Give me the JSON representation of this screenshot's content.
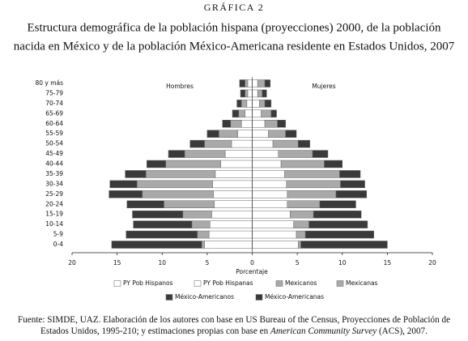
{
  "chart_data": {
    "type": "population-pyramid",
    "kicker": "GRÁFICA 2",
    "title": [
      "Estructura demográfica de la población hispana (proyecciones) 2000, de la población",
      "nacida en México y de la población México-Americana residente en Estados Unidos, 2007"
    ],
    "categories": [
      "80 y más",
      "75-79",
      "70-74",
      "65-69",
      "60-64",
      "55-59",
      "50-54",
      "45-49",
      "40-44",
      "35-39",
      "30-34",
      "25-29",
      "20-24",
      "15-19",
      "10-14",
      "5-9",
      "0-4"
    ],
    "panels": [
      {
        "label": "Hombres",
        "series": [
          {
            "name": "PY Pob Hispanos",
            "color": "#ffffff",
            "values": [
              0.5,
              0.5,
              0.6,
              0.8,
              1.2,
              1.6,
              2.3,
              3.0,
              3.5,
              4.1,
              4.4,
              4.3,
              4.2,
              4.5,
              4.7,
              4.8,
              5.3
            ]
          },
          {
            "name": "Mexicanos",
            "color": "#a9a9a9",
            "values": [
              0.3,
              0.3,
              0.6,
              0.7,
              1.2,
              2.1,
              3.0,
              4.5,
              6.1,
              7.7,
              8.4,
              7.9,
              5.6,
              3.2,
              2.0,
              1.3,
              0.3
            ]
          },
          {
            "name": "México-Americanos",
            "color": "#3a3a3a",
            "values": [
              0.6,
              0.5,
              0.5,
              0.7,
              0.9,
              1.3,
              1.6,
              1.8,
              2.1,
              2.3,
              3.0,
              3.7,
              4.1,
              5.6,
              6.5,
              7.9,
              10.0
            ]
          }
        ]
      },
      {
        "label": "Mujeres",
        "series": [
          {
            "name": "PY Pob Hispanas",
            "color": "#ffffff",
            "values": [
              0.6,
              0.6,
              0.8,
              1.0,
              1.4,
              1.8,
              2.3,
              2.9,
              3.2,
              3.6,
              3.8,
              3.9,
              3.9,
              4.2,
              4.6,
              4.9,
              5.1
            ]
          },
          {
            "name": "Mexicanas",
            "color": "#a9a9a9",
            "values": [
              0.8,
              0.5,
              0.6,
              1.1,
              1.4,
              1.9,
              2.8,
              3.8,
              4.8,
              6.1,
              6.0,
              5.4,
              3.6,
              2.6,
              1.7,
              1.0,
              0.3
            ]
          },
          {
            "name": "México-Americanas",
            "color": "#3a3a3a",
            "values": [
              0.6,
              0.5,
              0.7,
              0.6,
              0.9,
              1.2,
              1.3,
              1.7,
              2.0,
              2.3,
              2.7,
              3.4,
              4.0,
              5.3,
              6.5,
              7.6,
              9.6
            ]
          }
        ]
      }
    ],
    "xlabel": "Porcentaje",
    "xlim": [
      -20,
      20
    ],
    "xticks": [
      {
        "value": -20,
        "label": "20"
      },
      {
        "value": -15,
        "label": "15"
      },
      {
        "value": -10,
        "label": "10"
      },
      {
        "value": -5,
        "label": "5"
      },
      0,
      5,
      10,
      15,
      20
    ],
    "source": [
      "Fuente: SIMDE, UAZ. Elaboración de los autores con base en US Bureau of the Census, Proyecciones de Población de Estados Unidos, 1995-210; y estimaciones propias con base en ",
      "American Community Survey",
      " (ACS), 2007."
    ]
  }
}
